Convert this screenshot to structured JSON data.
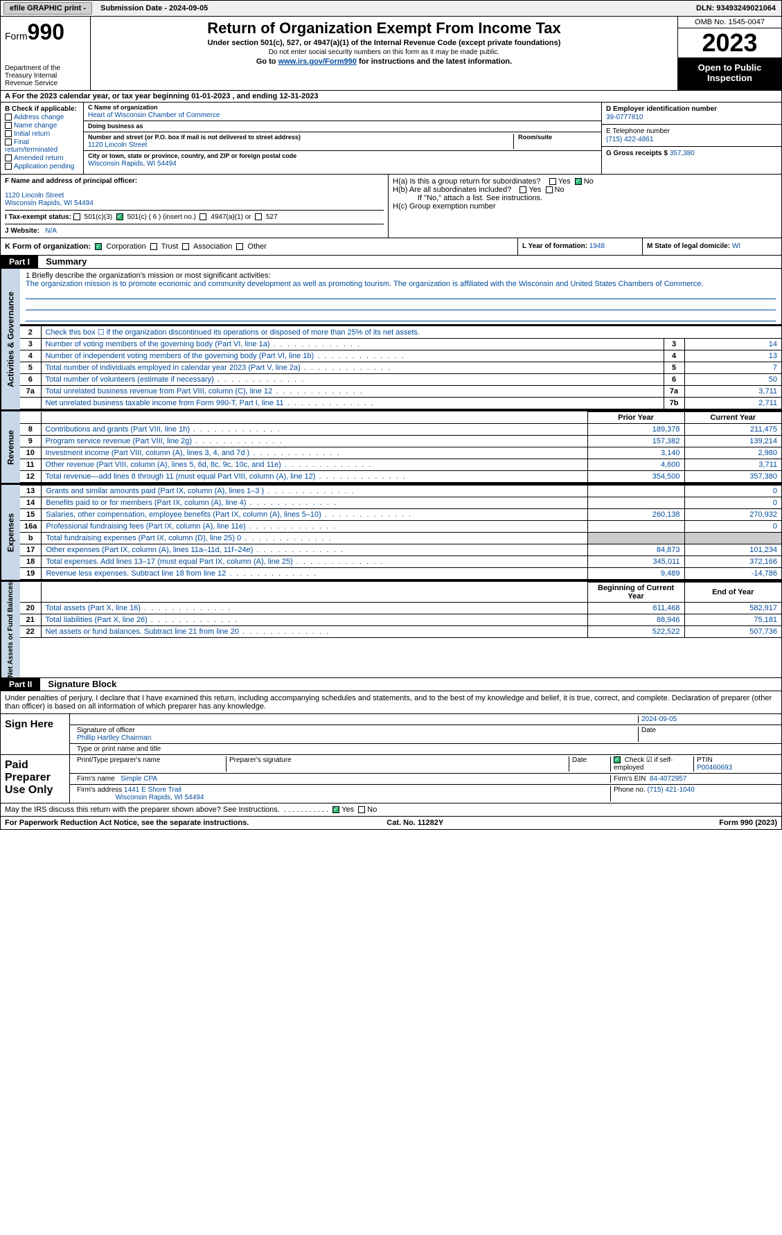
{
  "topbar": {
    "efile": "efile GRAPHIC print -",
    "submission": "Submission Date - 2024-09-05",
    "dln": "DLN: 93493249021064"
  },
  "header": {
    "form_prefix": "Form",
    "form_num": "990",
    "dept": "Department of the Treasury Internal Revenue Service",
    "title": "Return of Organization Exempt From Income Tax",
    "sub1": "Under section 501(c), 527, or 4947(a)(1) of the Internal Revenue Code (except private foundations)",
    "sub2": "Do not enter social security numbers on this form as it may be made public.",
    "sub3_pre": "Go to ",
    "sub3_link": "www.irs.gov/Form990",
    "sub3_post": " for instructions and the latest information.",
    "omb": "OMB No. 1545-0047",
    "year": "2023",
    "open": "Open to Public Inspection"
  },
  "line_a": "A  For the 2023 calendar year, or tax year beginning 01-01-2023   , and ending 12-31-2023",
  "box_b": {
    "title": "B Check if applicable:",
    "items": [
      "Address change",
      "Name change",
      "Initial return",
      "Final return/terminated",
      "Amended return",
      "Application pending"
    ]
  },
  "box_c": {
    "name_lbl": "C Name of organization",
    "name": "Heart of Wisconsin Chamber of Commerce",
    "dba_lbl": "Doing business as",
    "dba": "",
    "street_lbl": "Number and street (or P.O. box if mail is not delivered to street address)",
    "street": "1120 Lincoln Street",
    "room_lbl": "Room/suite",
    "room": "",
    "city_lbl": "City or town, state or province, country, and ZIP or foreign postal code",
    "city": "Wisconsin Rapids, WI  54494"
  },
  "box_d": {
    "ein_lbl": "D Employer identification number",
    "ein": "39-0777810",
    "tel_lbl": "E Telephone number",
    "tel": "(715) 422-4861",
    "gross_lbl": "G Gross receipts $",
    "gross": "357,380"
  },
  "box_f": {
    "lbl": "F  Name and address of principal officer:",
    "name": "",
    "addr1": "1120 Lincoln Street",
    "addr2": "Wisconsin Rapids, WI  54494"
  },
  "box_h": {
    "ha": "H(a)  Is this a group return for subordinates?",
    "hb": "H(b)  Are all subordinates included?",
    "hb_note": "If \"No,\" attach a list. See instructions.",
    "hc": "H(c)  Group exemption number"
  },
  "line_i": {
    "lbl": "I    Tax-exempt status:",
    "opts": [
      "501(c)(3)",
      "501(c) ( 6 ) (insert no.)",
      "4947(a)(1) or",
      "527"
    ]
  },
  "line_j": {
    "lbl": "J   Website:",
    "val": "N/A"
  },
  "line_k": {
    "lbl": "K Form of organization:",
    "opts": [
      "Corporation",
      "Trust",
      "Association",
      "Other"
    ]
  },
  "line_l": {
    "lbl": "L Year of formation:",
    "val": "1948"
  },
  "line_m": {
    "lbl": "M State of legal domicile:",
    "val": "WI"
  },
  "parts": {
    "p1": "Part I",
    "p1_title": "Summary",
    "p2": "Part II",
    "p2_title": "Signature Block"
  },
  "side": {
    "gov": "Activities & Governance",
    "rev": "Revenue",
    "exp": "Expenses",
    "net": "Net Assets or Fund Balances"
  },
  "mission": {
    "q": "1  Briefly describe the organization's mission or most significant activities:",
    "a": "The organization mission is to promote economic and community development as well as promoting tourism. The organization is affiliated with the Wisconsin and United States Chambers of Commerce."
  },
  "gov_rows": [
    {
      "n": "2",
      "desc": "Check this box ☐ if the organization discontinued its operations or disposed of more than 25% of its net assets.",
      "idx": "",
      "val": ""
    },
    {
      "n": "3",
      "desc": "Number of voting members of the governing body (Part VI, line 1a)",
      "idx": "3",
      "val": "14"
    },
    {
      "n": "4",
      "desc": "Number of independent voting members of the governing body (Part VI, line 1b)",
      "idx": "4",
      "val": "13"
    },
    {
      "n": "5",
      "desc": "Total number of individuals employed in calendar year 2023 (Part V, line 2a)",
      "idx": "5",
      "val": "7"
    },
    {
      "n": "6",
      "desc": "Total number of volunteers (estimate if necessary)",
      "idx": "6",
      "val": "50"
    },
    {
      "n": "7a",
      "desc": "Total unrelated business revenue from Part VIII, column (C), line 12",
      "idx": "7a",
      "val": "3,711"
    },
    {
      "n": "",
      "desc": "Net unrelated business taxable income from Form 990-T, Part I, line 11",
      "idx": "7b",
      "val": "2,711"
    }
  ],
  "year_hdr": {
    "prior": "Prior Year",
    "current": "Current Year"
  },
  "rev_rows": [
    {
      "n": "8",
      "desc": "Contributions and grants (Part VIII, line 1h)",
      "p": "189,378",
      "c": "211,475"
    },
    {
      "n": "9",
      "desc": "Program service revenue (Part VIII, line 2g)",
      "p": "157,382",
      "c": "139,214"
    },
    {
      "n": "10",
      "desc": "Investment income (Part VIII, column (A), lines 3, 4, and 7d )",
      "p": "3,140",
      "c": "2,980"
    },
    {
      "n": "11",
      "desc": "Other revenue (Part VIII, column (A), lines 5, 6d, 8c, 9c, 10c, and 11e)",
      "p": "4,600",
      "c": "3,711"
    },
    {
      "n": "12",
      "desc": "Total revenue—add lines 8 through 11 (must equal Part VIII, column (A), line 12)",
      "p": "354,500",
      "c": "357,380"
    }
  ],
  "exp_rows": [
    {
      "n": "13",
      "desc": "Grants and similar amounts paid (Part IX, column (A), lines 1–3 )",
      "p": "",
      "c": "0"
    },
    {
      "n": "14",
      "desc": "Benefits paid to or for members (Part IX, column (A), line 4)",
      "p": "",
      "c": "0"
    },
    {
      "n": "15",
      "desc": "Salaries, other compensation, employee benefits (Part IX, column (A), lines 5–10)",
      "p": "260,138",
      "c": "270,932"
    },
    {
      "n": "16a",
      "desc": "Professional fundraising fees (Part IX, column (A), line 11e)",
      "p": "",
      "c": "0"
    },
    {
      "n": "b",
      "desc": "Total fundraising expenses (Part IX, column (D), line 25) 0",
      "p": "GREY",
      "c": "GREY"
    },
    {
      "n": "17",
      "desc": "Other expenses (Part IX, column (A), lines 11a–11d, 11f–24e)",
      "p": "84,873",
      "c": "101,234"
    },
    {
      "n": "18",
      "desc": "Total expenses. Add lines 13–17 (must equal Part IX, column (A), line 25)",
      "p": "345,011",
      "c": "372,166"
    },
    {
      "n": "19",
      "desc": "Revenue less expenses. Subtract line 18 from line 12",
      "p": "9,489",
      "c": "-14,786"
    }
  ],
  "net_hdr": {
    "begin": "Beginning of Current Year",
    "end": "End of Year"
  },
  "net_rows": [
    {
      "n": "20",
      "desc": "Total assets (Part X, line 16)",
      "p": "611,468",
      "c": "582,917"
    },
    {
      "n": "21",
      "desc": "Total liabilities (Part X, line 26)",
      "p": "88,946",
      "c": "75,181"
    },
    {
      "n": "22",
      "desc": "Net assets or fund balances. Subtract line 21 from line 20",
      "p": "522,522",
      "c": "507,736"
    }
  ],
  "sig_intro": "Under penalties of perjury, I declare that I have examined this return, including accompanying schedules and statements, and to the best of my knowledge and belief, it is true, correct, and complete. Declaration of preparer (other than officer) is based on all information of which preparer has any knowledge.",
  "sign_here": "Sign Here",
  "sig_date": "2024-09-05",
  "sig_officer_lbl": "Signature of officer",
  "sig_officer": "Phillip Hartley Chairman",
  "sig_type_lbl": "Type or print name and title",
  "paid": "Paid Preparer Use Only",
  "prep": {
    "name_lbl": "Print/Type preparer's name",
    "name": "",
    "sig_lbl": "Preparer's signature",
    "date_lbl": "Date",
    "check_lbl": "Check ☑ if self-employed",
    "ptin_lbl": "PTIN",
    "ptin": "P00460693",
    "firm_lbl": "Firm's name",
    "firm": "Simple CPA",
    "ein_lbl": "Firm's EIN",
    "ein": "84-4072957",
    "addr_lbl": "Firm's address",
    "addr1": "1441 E Shore Trail",
    "addr2": "Wisconsin Rapids, WI  54494",
    "phone_lbl": "Phone no.",
    "phone": "(715) 421-1040"
  },
  "discuss": "May the IRS discuss this return with the preparer shown above? See Instructions.",
  "footer": {
    "left": "For Paperwork Reduction Act Notice, see the separate instructions.",
    "mid": "Cat. No. 11282Y",
    "right": "Form 990 (2023)"
  },
  "colors": {
    "link": "#004b9b",
    "side_bg": "#c8d8e8",
    "check_green": "#2bb673"
  }
}
